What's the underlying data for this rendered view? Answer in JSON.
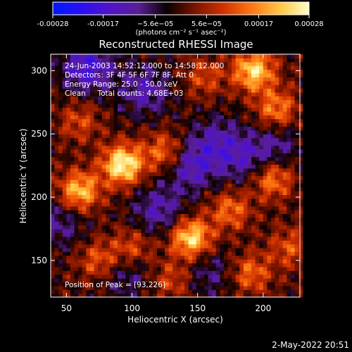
{
  "chart_data": {
    "type": "heatmap",
    "title": "Reconstructed RHESSI Image",
    "xlabel": "Heliocentric X (arcsec)",
    "ylabel": "Heliocentric Y (arcsec)",
    "xlim": [
      38,
      228
    ],
    "ylim": [
      121,
      313
    ],
    "x_ticks": [
      50,
      100,
      150,
      200
    ],
    "y_ticks": [
      150,
      200,
      250,
      300
    ],
    "colorbar": {
      "range": [
        -0.00028,
        0.00028
      ],
      "tick_values": [
        -0.00028,
        -0.00017,
        -5.6e-05,
        5.6e-05,
        0.00017,
        0.00028
      ],
      "tick_labels": [
        "-0.00028",
        "-0.00017",
        "−5.6e−05",
        "5.6e−05",
        "0.00017",
        "0.00028"
      ],
      "unit_label": "(photons cm⁻² s⁻¹ asec⁻²)",
      "colormap": [
        "#0018ff",
        "#2a0ff0",
        "#5014c8",
        "#5a1e96",
        "#0a0000",
        "#781400",
        "#d23200",
        "#ff7814",
        "#ffc846",
        "#ffffc8"
      ]
    },
    "info_lines": [
      "24-Jun-2003 14:52:12.000 to 14:58:12.000",
      "Detectors: 3F 4F 5F 6F 7F 8F, Att 0",
      "Energy Range: 25.0 - 50.0 keV",
      "Clean     Total counts: 4.68E+03"
    ],
    "peak_text": "Position of Peak = [93,226]",
    "peak": [
      93,
      226
    ],
    "hotspots": [
      {
        "x": 93,
        "y": 226,
        "value": 0.00028
      },
      {
        "x": 60,
        "y": 205,
        "value": 0.00022
      },
      {
        "x": 145,
        "y": 168,
        "value": 0.00025
      },
      {
        "x": 193,
        "y": 300,
        "value": 0.00024
      },
      {
        "x": 210,
        "y": 270,
        "value": 0.00016
      },
      {
        "x": 125,
        "y": 236,
        "value": 0.00015
      },
      {
        "x": 175,
        "y": 190,
        "value": 0.00014
      },
      {
        "x": 207,
        "y": 215,
        "value": 0.00017
      },
      {
        "x": 100,
        "y": 160,
        "value": 0.00012
      },
      {
        "x": 190,
        "y": 140,
        "value": 0.00014
      },
      {
        "x": 60,
        "y": 260,
        "value": 0.0001
      },
      {
        "x": 75,
        "y": 150,
        "value": 0.00013
      },
      {
        "x": 155,
        "y": 295,
        "value": 0.0001
      },
      {
        "x": 220,
        "y": 160,
        "value": 0.00011
      },
      {
        "x": 130,
        "y": 135,
        "value": 0.0001
      }
    ],
    "coldspots": [
      {
        "x": 66,
        "y": 303,
        "value": -0.00017
      },
      {
        "x": 110,
        "y": 285,
        "value": -0.00012
      },
      {
        "x": 145,
        "y": 225,
        "value": -0.00014
      },
      {
        "x": 120,
        "y": 190,
        "value": -0.00012
      },
      {
        "x": 165,
        "y": 245,
        "value": -0.0001
      },
      {
        "x": 95,
        "y": 140,
        "value": -9e-05
      },
      {
        "x": 210,
        "y": 240,
        "value": -9e-05
      },
      {
        "x": 45,
        "y": 180,
        "value": -9e-05
      },
      {
        "x": 160,
        "y": 140,
        "value": -8e-05
      },
      {
        "x": 185,
        "y": 230,
        "value": -0.0001
      }
    ]
  },
  "timestamp": "2-May-2022 20:51"
}
